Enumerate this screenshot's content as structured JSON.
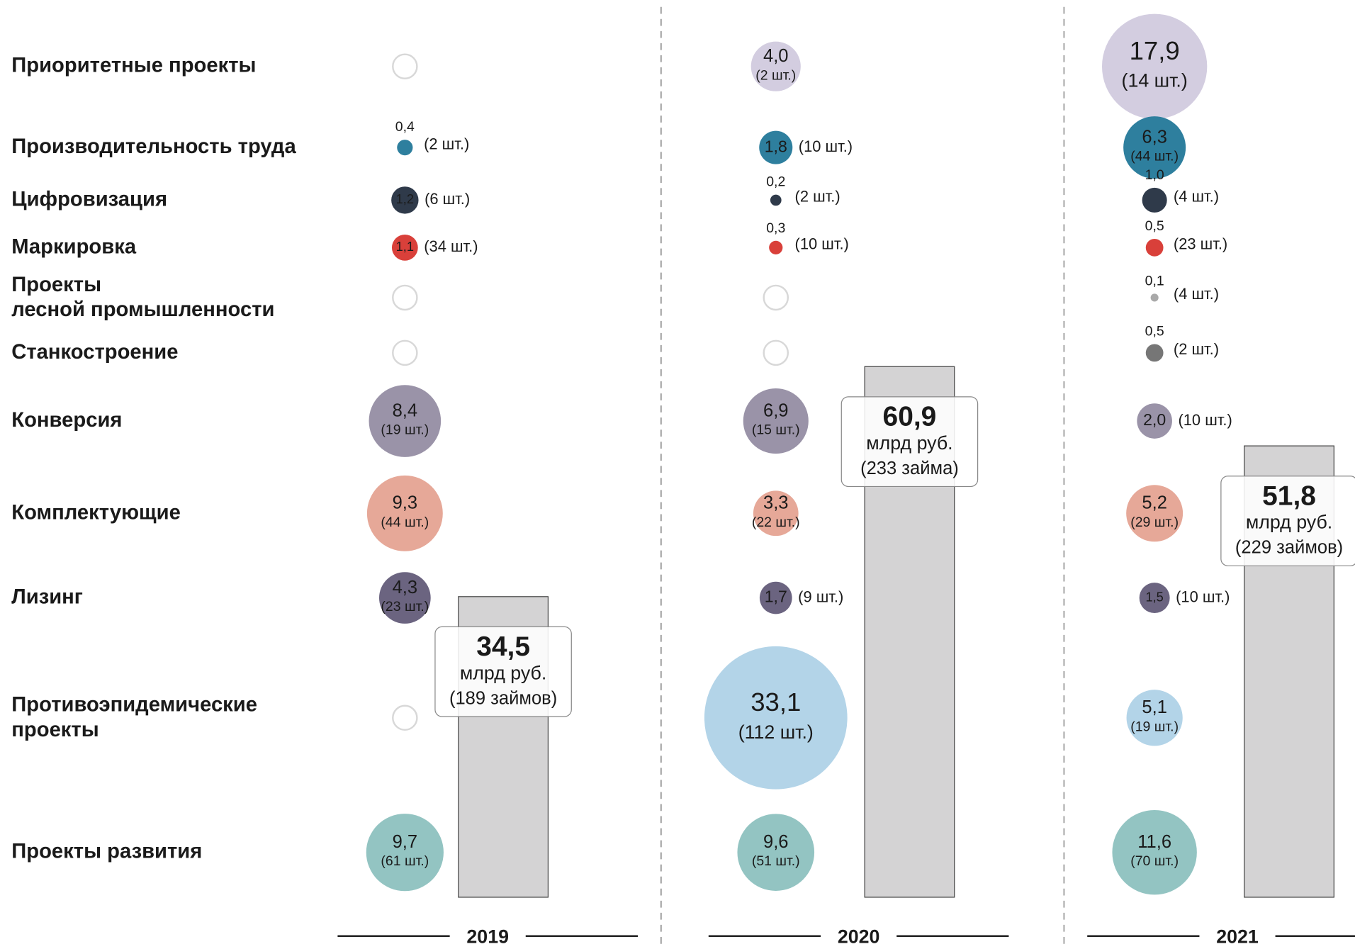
{
  "chart_data": {
    "type": "bubble",
    "categories": [
      [
        "Приоритетные проекты"
      ],
      [
        "Производительность труда"
      ],
      [
        "Цифровизация"
      ],
      [
        "Маркировка"
      ],
      [
        "Проекты",
        "лесной промышленности"
      ],
      [
        "Станкостроение"
      ],
      [
        "Конверсия"
      ],
      [
        "Комплектующие"
      ],
      [
        "Лизинг"
      ],
      [
        "Противоэпидемические",
        "проекты"
      ],
      [
        "Проекты развития"
      ]
    ],
    "colors": [
      "#d3cde0",
      "#2e7f9e",
      "#2f3a4a",
      "#d9403a",
      "#a9a9a9",
      "#767676",
      "#9a93a8",
      "#e6a898",
      "#6b6480",
      "#b3d4e8",
      "#93c4c2"
    ],
    "unit": "млрд руб.",
    "series": [
      {
        "name": "2019",
        "values": [
          null,
          0.4,
          1.2,
          1.1,
          null,
          null,
          8.4,
          9.3,
          4.3,
          null,
          9.7
        ],
        "value_labels": [
          null,
          "0,4",
          "1,2",
          "1,1",
          null,
          null,
          "8,4",
          "9,3",
          "4,3",
          null,
          "9,7"
        ],
        "count_labels": [
          null,
          "(2 шт.)",
          "(6 шт.)",
          "(34 шт.)",
          null,
          null,
          "(19 шт.)",
          "(44 шт.)",
          "(23 шт.)",
          null,
          "(61 шт.)"
        ],
        "total": 34.5,
        "total_label": "34,5",
        "loans_label": "(189 займов)"
      },
      {
        "name": "2020",
        "values": [
          4.0,
          1.8,
          0.2,
          0.3,
          null,
          null,
          6.9,
          3.3,
          1.7,
          33.1,
          9.6
        ],
        "value_labels": [
          "4,0",
          "1,8",
          "0,2",
          "0,3",
          null,
          null,
          "6,9",
          "3,3",
          "1,7",
          "33,1",
          "9,6"
        ],
        "count_labels": [
          "(2 шт.)",
          "(10 шт.)",
          "(2 шт.)",
          "(10 шт.)",
          null,
          null,
          "(15 шт.)",
          "(22 шт.)",
          "(9 шт.)",
          "(112 шт.)",
          "(51 шт.)"
        ],
        "total": 60.9,
        "total_label": "60,9",
        "loans_label": "(233 займа)"
      },
      {
        "name": "2021",
        "values": [
          17.9,
          6.3,
          1.0,
          0.5,
          0.1,
          0.5,
          2.0,
          5.2,
          1.5,
          5.1,
          11.6
        ],
        "value_labels": [
          "17,9",
          "6,3",
          "1,0",
          "0,5",
          "0,1",
          "0,5",
          "2,0",
          "5,2",
          "1,5",
          "5,1",
          "11,6"
        ],
        "count_labels": [
          "(14 шт.)",
          "(44 шт.)",
          "(4 шт.)",
          "(23 шт.)",
          "(4 шт.)",
          "(2 шт.)",
          "(10 шт.)",
          "(29 шт.)",
          "(10 шт.)",
          "(19 шт.)",
          "(70 шт.)"
        ],
        "total": 51.8,
        "total_label": "51,8",
        "loans_label": "(229 займов)"
      }
    ]
  }
}
